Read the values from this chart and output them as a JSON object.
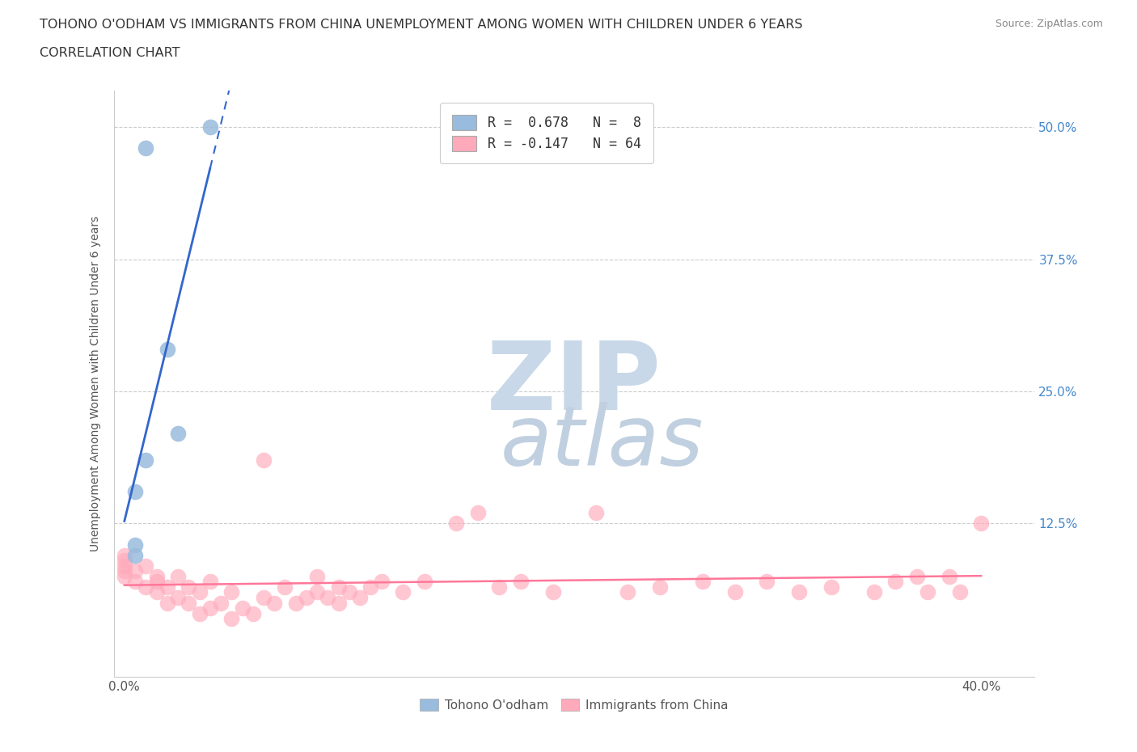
{
  "title_line1": "TOHONO O'ODHAM VS IMMIGRANTS FROM CHINA UNEMPLOYMENT AMONG WOMEN WITH CHILDREN UNDER 6 YEARS",
  "title_line2": "CORRELATION CHART",
  "source_text": "Source: ZipAtlas.com",
  "ylabel": "Unemployment Among Women with Children Under 6 years",
  "legend_r1": "R =  0.678   N =  8",
  "legend_r2": "R = -0.147   N = 64",
  "blue_scatter_color": "#99bbdd",
  "pink_scatter_color": "#ffaabb",
  "blue_line_color": "#3366cc",
  "pink_line_color": "#ff7799",
  "grid_color": "#cccccc",
  "title_color": "#333333",
  "right_tick_color": "#4488cc",
  "watermark_zip_color": "#c8d8e8",
  "watermark_atlas_color": "#c0d0e0",
  "xlim": [
    -0.005,
    0.425
  ],
  "ylim": [
    -0.02,
    0.535
  ],
  "x_ticks": [
    0.0,
    0.05,
    0.1,
    0.15,
    0.2,
    0.25,
    0.3,
    0.35,
    0.4
  ],
  "y_ticks": [
    0.0,
    0.125,
    0.25,
    0.375,
    0.5
  ],
  "tohono_x": [
    0.005,
    0.005,
    0.005,
    0.01,
    0.01,
    0.02,
    0.025,
    0.04
  ],
  "tohono_y": [
    0.095,
    0.105,
    0.155,
    0.48,
    0.185,
    0.29,
    0.21,
    0.5
  ],
  "china_x": [
    0.0,
    0.0,
    0.0,
    0.0,
    0.0,
    0.005,
    0.005,
    0.01,
    0.01,
    0.015,
    0.015,
    0.015,
    0.02,
    0.02,
    0.025,
    0.025,
    0.03,
    0.03,
    0.035,
    0.035,
    0.04,
    0.04,
    0.045,
    0.05,
    0.05,
    0.055,
    0.06,
    0.065,
    0.065,
    0.07,
    0.075,
    0.08,
    0.085,
    0.09,
    0.09,
    0.095,
    0.1,
    0.1,
    0.105,
    0.11,
    0.115,
    0.12,
    0.13,
    0.14,
    0.155,
    0.165,
    0.175,
    0.185,
    0.2,
    0.22,
    0.235,
    0.25,
    0.27,
    0.285,
    0.3,
    0.315,
    0.33,
    0.35,
    0.36,
    0.37,
    0.375,
    0.385,
    0.39,
    0.4
  ],
  "china_y": [
    0.075,
    0.08,
    0.085,
    0.09,
    0.095,
    0.07,
    0.08,
    0.065,
    0.085,
    0.06,
    0.07,
    0.075,
    0.05,
    0.065,
    0.055,
    0.075,
    0.05,
    0.065,
    0.04,
    0.06,
    0.045,
    0.07,
    0.05,
    0.035,
    0.06,
    0.045,
    0.04,
    0.055,
    0.185,
    0.05,
    0.065,
    0.05,
    0.055,
    0.06,
    0.075,
    0.055,
    0.05,
    0.065,
    0.06,
    0.055,
    0.065,
    0.07,
    0.06,
    0.07,
    0.125,
    0.135,
    0.065,
    0.07,
    0.06,
    0.135,
    0.06,
    0.065,
    0.07,
    0.06,
    0.07,
    0.06,
    0.065,
    0.06,
    0.07,
    0.075,
    0.06,
    0.075,
    0.06,
    0.125
  ]
}
